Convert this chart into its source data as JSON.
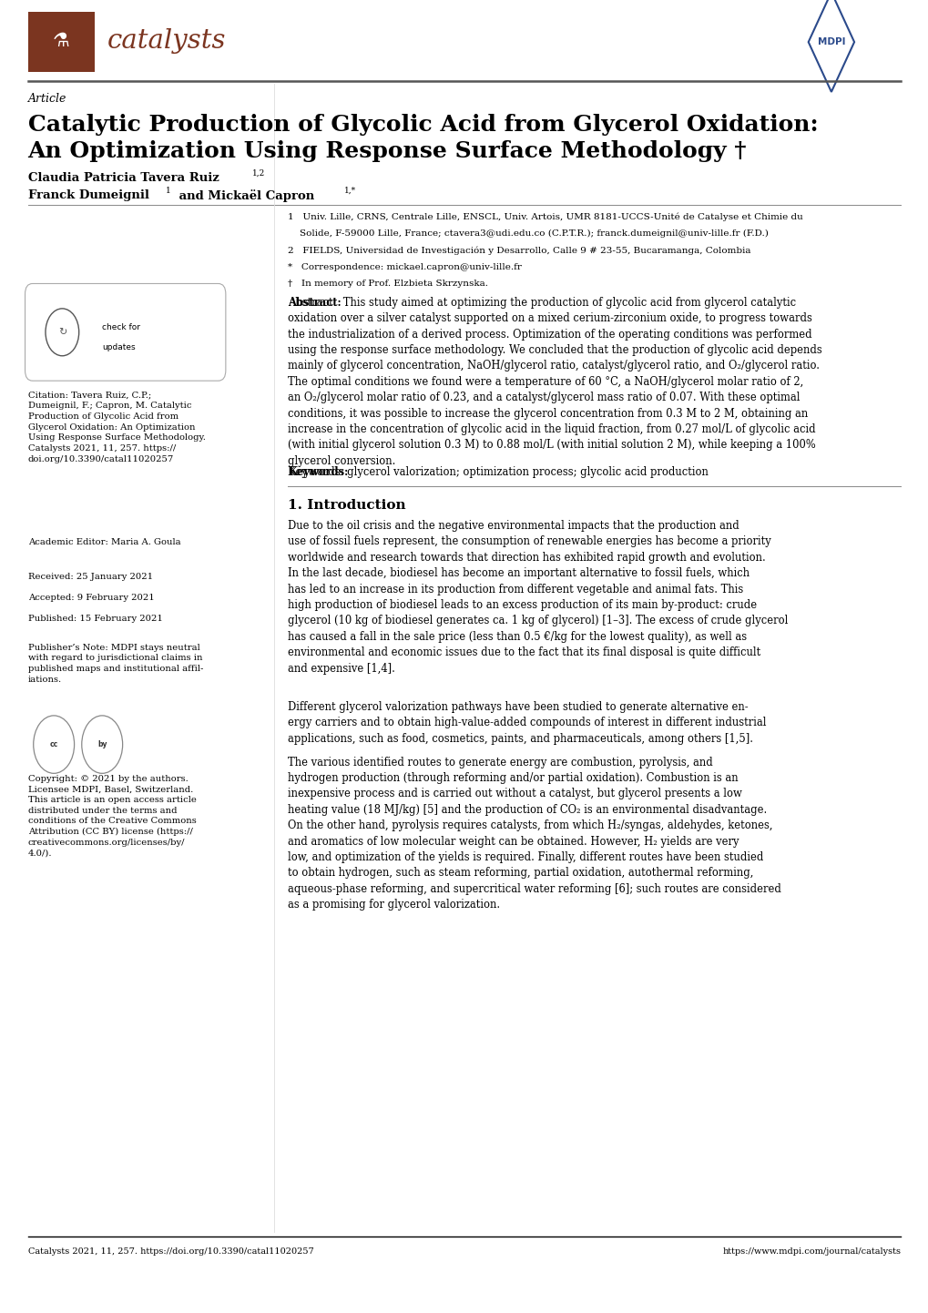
{
  "page_bg": "#ffffff",
  "header_logo_color": "#7B3520",
  "journal_name": "catalysts",
  "journal_name_color": "#7B3520",
  "mdpi_color": "#2B4A8B",
  "article_type": "Article",
  "title_line1": "Catalytic Production of Glycolic Acid from Glycerol Oxidation:",
  "title_line2": "An Optimization Using Response Surface Methodology †",
  "author1": "Claudia Patricia Tavera Ruiz ",
  "author1_sup": "1,2",
  "author2": "Franck Dumeignil ",
  "author2_sup": "1",
  "author3": " and Mickaël Capron ",
  "author3_sup": "1,*",
  "affil_lines": [
    "1   Univ. Lille, CRNS, Centrale Lille, ENSCL, Univ. Artois, UMR 8181-UCCS-Unité de Catalyse et Chimie du",
    "    Solide, F-59000 Lille, France; ctavera3@udi.edu.co (C.P.T.R.); franck.dumeignil@univ-lille.fr (F.D.)",
    "2   FIELDS, Universidad de Investigación y Desarrollo, Calle 9 # 23-55, Bucaramanga, Colombia",
    "*   Correspondence: mickael.capron@univ-lille.fr",
    "†   In memory of Prof. Elzbieta Skrzynska."
  ],
  "abstract_bold": "Abstract:",
  "abstract_text": "  This study aimed at optimizing the production of glycolic acid from glycerol catalytic\noxidation over a silver catalyst supported on a mixed cerium-zirconium oxide, to progress towards\nthe industrialization of a derived process. Optimization of the operating conditions was performed\nusing the response surface methodology. We concluded that the production of glycolic acid depends\nmainly of glycerol concentration, NaOH/glycerol ratio, catalyst/glycerol ratio, and O₂/glycerol ratio.\nThe optimal conditions we found were a temperature of 60 °C, a NaOH/glycerol molar ratio of 2,\nan O₂/glycerol molar ratio of 0.23, and a catalyst/glycerol mass ratio of 0.07. With these optimal\nconditions, it was possible to increase the glycerol concentration from 0.3 M to 2 M, obtaining an\nincrease in the concentration of glycolic acid in the liquid fraction, from 0.27 mol/L of glycolic acid\n(with initial glycerol solution 0.3 M) to 0.88 mol/L (with initial solution 2 M), while keeping a 100%\nglycerol conversion.",
  "keywords_bold": "Keywords:",
  "keywords_text": " glycerol valorization; optimization process; glycolic acid production",
  "section1_title": "1. Introduction",
  "intro_p1": "Due to the oil crisis and the negative environmental impacts that the production and\nuse of fossil fuels represent, the consumption of renewable energies has become a priority\nworldwide and research towards that direction has exhibited rapid growth and evolution.\nIn the last decade, biodiesel has become an important alternative to fossil fuels, which\nhas led to an increase in its production from different vegetable and animal fats. This\nhigh production of biodiesel leads to an excess production of its main by-product: crude\nglycerol (10 kg of biodiesel generates ca. 1 kg of glycerol) [1–3]. The excess of crude glycerol\nhas caused a fall in the sale price (less than 0.5 €/kg for the lowest quality), as well as\nenvironmental and economic issues due to the fact that its final disposal is quite difficult\nand expensive [1,4].",
  "intro_p2": "Different glycerol valorization pathways have been studied to generate alternative en-\nergy carriers and to obtain high-value-added compounds of interest in different industrial\napplications, such as food, cosmetics, paints, and pharmaceuticals, among others [1,5].",
  "intro_p3": "The various identified routes to generate energy are combustion, pyrolysis, and\nhydrogen production (through reforming and/or partial oxidation). Combustion is an\ninexpensive process and is carried out without a catalyst, but glycerol presents a low\nheating value (18 MJ/kg) [5] and the production of CO₂ is an environmental disadvantage.\nOn the other hand, pyrolysis requires catalysts, from which H₂/syngas, aldehydes, ketones,\nand aromatics of low molecular weight can be obtained. However, H₂ yields are very\nlow, and optimization of the yields is required. Finally, different routes have been studied\nto obtain hydrogen, such as steam reforming, partial oxidation, autothermal reforming,\naqueous-phase reforming, and supercritical water reforming [6]; such routes are considered\nas a promising for glycerol valorization.",
  "citation_text": "Citation: Tavera Ruiz, C.P.;\nDumeignil, F.; Capron, M. Catalytic\nProduction of Glycolic Acid from\nGlycerol Oxidation: An Optimization\nUsing Response Surface Methodology.\nCatalysts 2021, 11, 257. https://\ndoi.org/10.3390/catal11020257",
  "academic_editor": "Academic Editor: Maria A. Goula",
  "received": "Received: 25 January 2021",
  "accepted": "Accepted: 9 February 2021",
  "published": "Published: 15 February 2021",
  "publisher_note": "Publisher’s Note: MDPI stays neutral\nwith regard to jurisdictional claims in\npublished maps and institutional affil-\niations.",
  "copyright_text": "Copyright: © 2021 by the authors.\nLicensee MDPI, Basel, Switzerland.\nThis article is an open access article\ndistributed under the terms and\nconditions of the Creative Commons\nAttribution (CC BY) license (https://\ncreativecommons.org/licenses/by/\n4.0/).",
  "footer_left": "Catalysts 2021, 11, 257. https://doi.org/10.3390/catal11020257",
  "footer_right": "https://www.mdpi.com/journal/catalysts"
}
